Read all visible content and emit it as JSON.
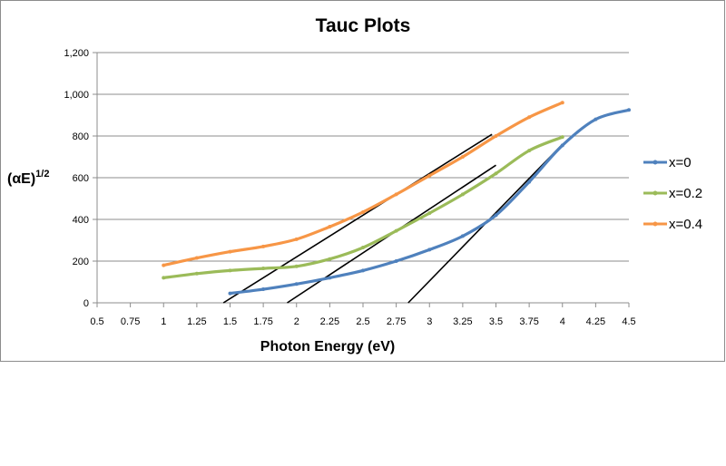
{
  "chart_data": {
    "type": "line",
    "title": "Tauc Plots",
    "xlabel": "Photon Energy (eV)",
    "ylabel": "(αE)",
    "ylabel_superscript": "1/2",
    "xlim": [
      0.5,
      4.5
    ],
    "ylim": [
      0,
      1200
    ],
    "x_ticks": [
      "0.5",
      "0.75",
      "1",
      "1.25",
      "1.5",
      "1.75",
      "2",
      "2.25",
      "2.5",
      "2.75",
      "3",
      "3.25",
      "3.5",
      "3.75",
      "4",
      "4.25",
      "4.5"
    ],
    "x_tick_values": [
      0.5,
      0.75,
      1,
      1.25,
      1.5,
      1.75,
      2,
      2.25,
      2.5,
      2.75,
      3,
      3.25,
      3.5,
      3.75,
      4,
      4.25,
      4.5
    ],
    "y_ticks": [
      "0",
      "200",
      "400",
      "600",
      "800",
      "1,000",
      "1,200"
    ],
    "y_tick_values": [
      0,
      200,
      400,
      600,
      800,
      1000,
      1200
    ],
    "grid": "horizontal",
    "legend_position": "right",
    "series": [
      {
        "name": "x=0",
        "color": "#4f81bd",
        "x": [
          1.5,
          1.75,
          2.0,
          2.25,
          2.5,
          2.75,
          3.0,
          3.25,
          3.5,
          3.75,
          4.0,
          4.25,
          4.5
        ],
        "y": [
          45,
          65,
          90,
          120,
          155,
          200,
          255,
          320,
          420,
          580,
          755,
          880,
          925
        ]
      },
      {
        "name": "x=0.2",
        "color": "#9bbb59",
        "x": [
          1.0,
          1.25,
          1.5,
          1.75,
          2.0,
          2.25,
          2.5,
          2.75,
          3.0,
          3.25,
          3.5,
          3.75,
          4.0
        ],
        "y": [
          120,
          140,
          155,
          165,
          175,
          210,
          265,
          345,
          430,
          520,
          620,
          730,
          795
        ]
      },
      {
        "name": "x=0.4",
        "color": "#f79646",
        "x": [
          1.0,
          1.25,
          1.5,
          1.75,
          2.0,
          2.25,
          2.5,
          2.75,
          3.0,
          3.25,
          3.5,
          3.75,
          4.0
        ],
        "y": [
          180,
          215,
          245,
          270,
          305,
          365,
          435,
          520,
          610,
          700,
          800,
          890,
          960
        ]
      }
    ],
    "fit_lines": [
      {
        "color": "#000000",
        "x": [
          1.45,
          3.47
        ],
        "y": [
          0,
          808
        ]
      },
      {
        "color": "#000000",
        "x": [
          1.93,
          3.5
        ],
        "y": [
          0,
          660
        ]
      },
      {
        "color": "#000000",
        "x": [
          2.84,
          4.0
        ],
        "y": [
          0,
          760
        ]
      }
    ]
  }
}
